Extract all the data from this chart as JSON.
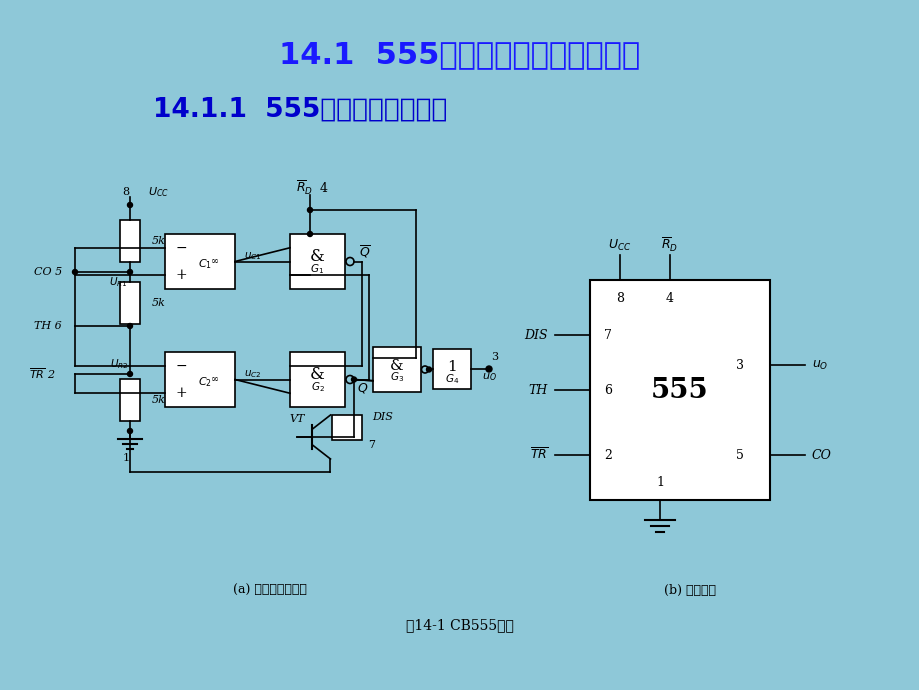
{
  "bg_color": "#8ec8d8",
  "title1": "14.1  555定时器的结构及工作原理",
  "title2": "14.1.1  555定时器的内部结构",
  "title1_color": "#1a1aff",
  "title2_color": "#0000cc",
  "caption": "图14-1 CB555电路",
  "sub_a": "(a) 内部电路结构图",
  "sub_b": "(b) 图形符号"
}
